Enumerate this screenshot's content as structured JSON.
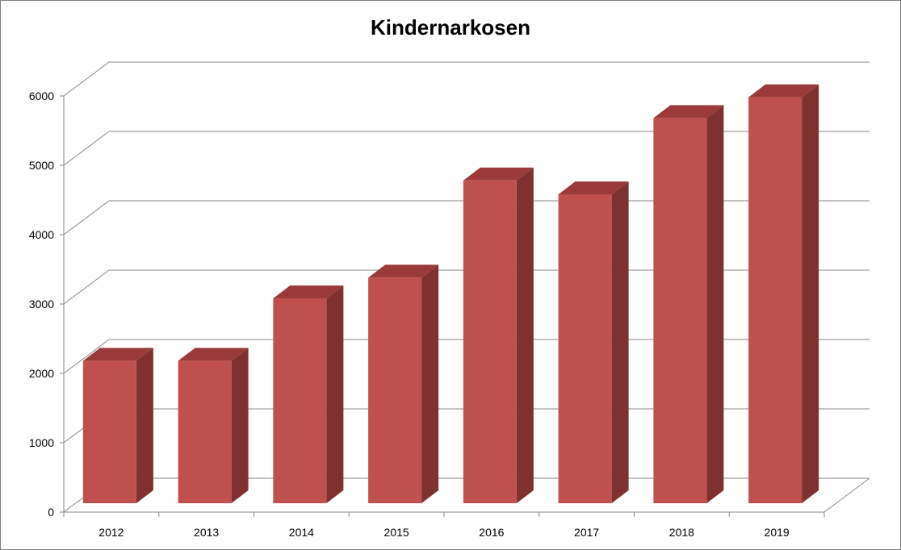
{
  "chart_data": {
    "type": "bar",
    "style": "3d-column",
    "title": "Kindernarkosen",
    "xlabel": "",
    "ylabel": "",
    "categories": [
      "2012",
      "2013",
      "2014",
      "2015",
      "2016",
      "2017",
      "2018",
      "2019"
    ],
    "values": [
      2100,
      2100,
      3000,
      3300,
      4700,
      4500,
      5600,
      5900
    ],
    "ylim": [
      0,
      6000
    ],
    "yticks": [
      0,
      1000,
      2000,
      3000,
      4000,
      5000,
      6000
    ],
    "grid": true,
    "legend": "none",
    "colors": {
      "bar_front": "#c0504d",
      "bar_side": "#7f3130",
      "bar_top": "#9a3b39",
      "gridline": "#868686"
    }
  }
}
